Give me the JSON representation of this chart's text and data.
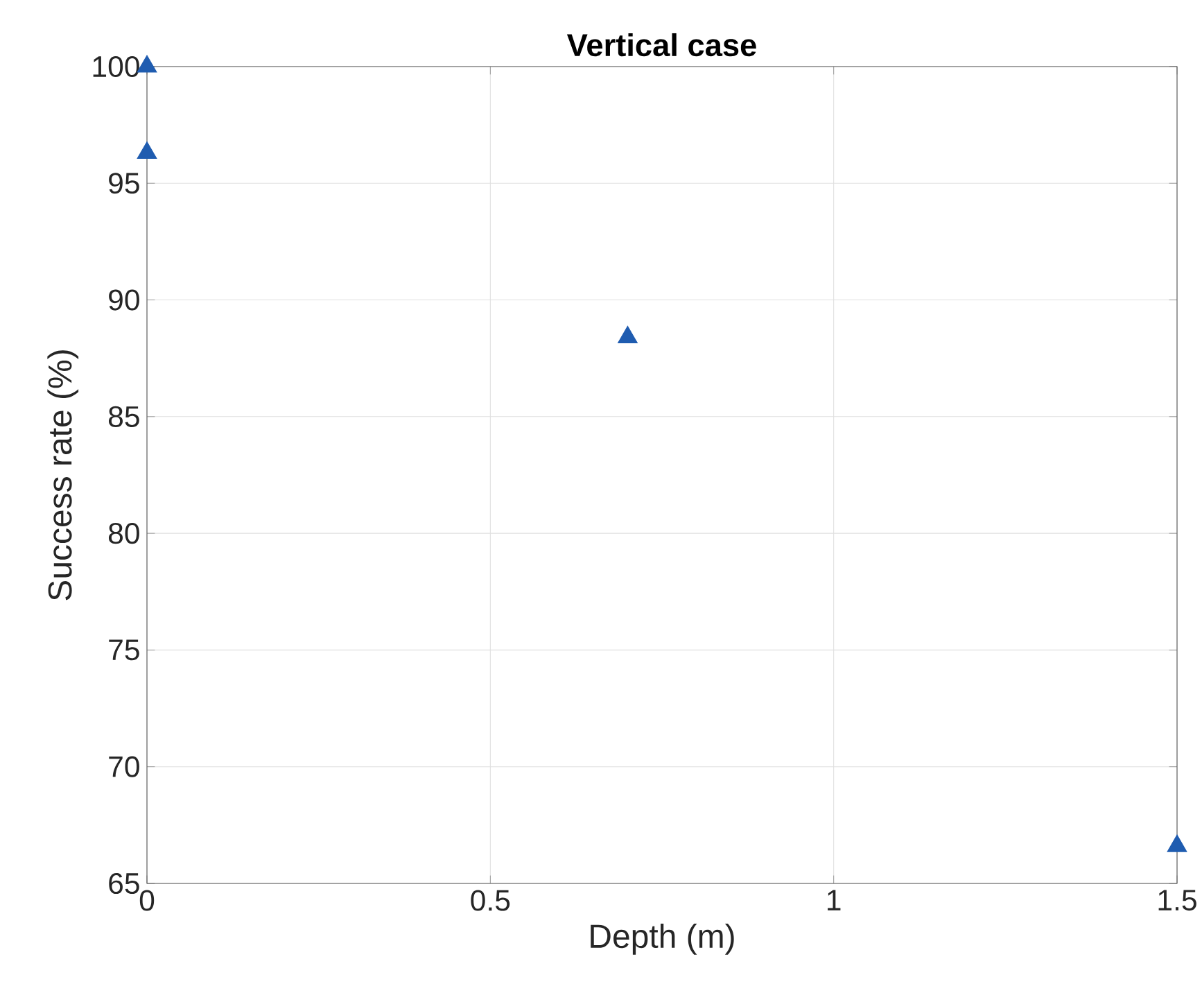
{
  "chart_data": {
    "type": "scatter",
    "title": "Vertical case",
    "xlabel": "Depth (m)",
    "ylabel": "Success rate (%)",
    "x": [
      0,
      0,
      0.7,
      1.5
    ],
    "series": [
      {
        "color": "#1f5cb0",
        "values": [
          100,
          96.3,
          88.4,
          66.6
        ]
      }
    ],
    "xlim": [
      0,
      1.5
    ],
    "ylim": [
      65,
      100
    ],
    "xticks": [
      0,
      0.5,
      1,
      1.5
    ],
    "yticks": [
      65,
      70,
      75,
      80,
      85,
      90,
      95,
      100
    ],
    "grid": true,
    "marker": "triangle"
  }
}
